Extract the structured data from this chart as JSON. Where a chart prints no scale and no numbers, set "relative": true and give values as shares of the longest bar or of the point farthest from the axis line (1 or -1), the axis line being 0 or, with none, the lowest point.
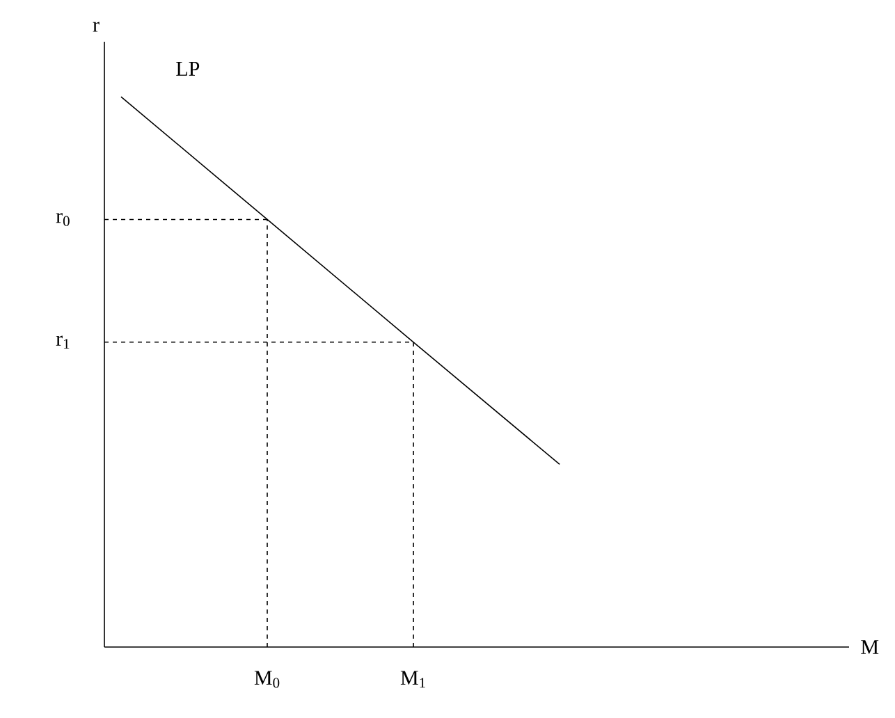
{
  "chart_data": {
    "type": "line",
    "relative": true,
    "ylabel": "r",
    "annotations": [
      "M"
    ],
    "categories": [
      null,
      "M$_{0}$",
      "M$_{1}$",
      null
    ],
    "series": [
      {
        "name": "LP",
        "color": "#000000",
        "line_style": "solid",
        "values": [
          1.0,
          0.777,
          0.554,
          0.332
        ]
      }
    ],
    "ref_lines": [
      {
        "axis": "y",
        "value": 0.777,
        "label": "r$_{0}$",
        "color": "#000000",
        "line_style": "dashed"
      },
      {
        "axis": "y",
        "value": 0.554,
        "label": "r$_{1}$",
        "color": "#000000",
        "line_style": "dashed"
      },
      {
        "axis": "x",
        "value": "M$_{0}$",
        "color": "#000000",
        "line_style": "dashed"
      },
      {
        "axis": "x",
        "value": "M$_{1}$",
        "color": "#000000",
        "line_style": "dashed"
      }
    ]
  }
}
